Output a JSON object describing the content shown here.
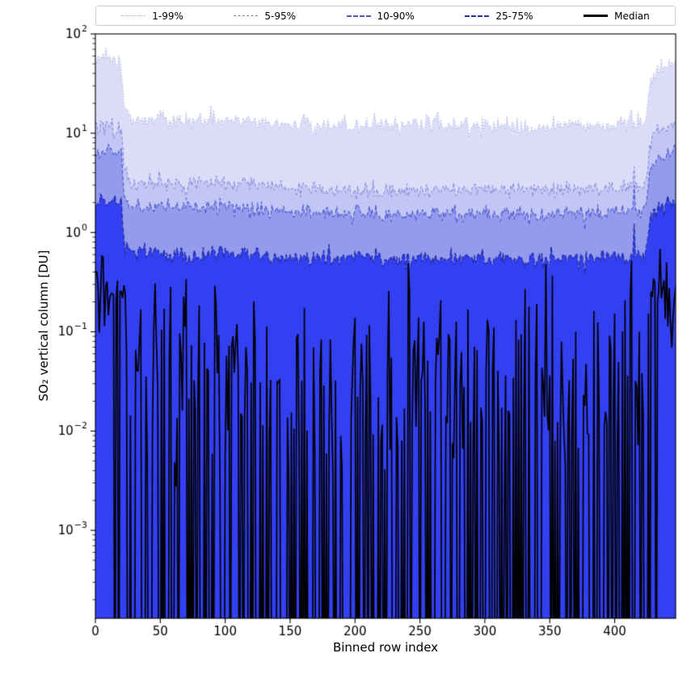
{
  "chart_data": {
    "type": "area",
    "title": "",
    "x_label": "Binned row index",
    "y_label": "SO₂ vertical column [DU]",
    "x_range": [
      0,
      447
    ],
    "x_ticks": [
      0,
      50,
      100,
      150,
      200,
      250,
      300,
      350,
      400
    ],
    "y_scale": "log",
    "y_range": [
      0.00013,
      100
    ],
    "y_tick_base": "10",
    "y_tick_exponents": [
      2,
      1,
      0,
      -1,
      -2,
      -3
    ],
    "n_bins": 448,
    "noise_seed": 1337,
    "grid": false,
    "legend_position": "top",
    "legend": [
      "1-99%",
      "5-95%",
      "10-90%",
      "25-75%",
      "Median"
    ],
    "colors": {
      "p99_fill": "#dbddf8",
      "p95_fill": "#c2c6f4",
      "p90_fill": "#939bec",
      "p75_fill": "#3340f2",
      "p99_edge": "#a8abde",
      "p95_edge": "#7d84d9",
      "p90_edge": "#4c56cd",
      "p75_edge": "#232ea9",
      "median": "#000000",
      "axis": "#000000",
      "background": "#ffffff"
    },
    "series": [
      {
        "id": "p99",
        "label": "1-99%",
        "kind": "band",
        "percentile": 99,
        "sigma": 0.045,
        "spike_weight": 0.25,
        "cx": [
          0,
          6,
          12,
          18,
          20,
          22,
          26,
          60,
          100,
          150,
          200,
          250,
          300,
          340,
          370,
          400,
          412,
          424,
          426,
          430,
          436,
          447
        ],
        "cy": [
          50,
          58,
          56,
          53,
          48,
          22,
          14.5,
          13.2,
          13.8,
          12.2,
          12.0,
          12.3,
          12.0,
          11.2,
          12.6,
          12.0,
          12.8,
          13.5,
          26,
          38,
          44,
          54
        ]
      },
      {
        "id": "p95",
        "label": "5-95%",
        "kind": "band",
        "percentile": 95,
        "sigma": 0.04,
        "spike_weight": 0.5,
        "cx": [
          0,
          8,
          16,
          20,
          22,
          26,
          60,
          100,
          150,
          200,
          250,
          300,
          350,
          400,
          415,
          424,
          427,
          434,
          447
        ],
        "cy": [
          11,
          12,
          11.5,
          10.8,
          4.5,
          3.2,
          3.0,
          3.15,
          2.8,
          2.6,
          2.65,
          2.7,
          2.7,
          2.8,
          2.9,
          3.0,
          7.5,
          10.5,
          12.5
        ]
      },
      {
        "id": "p90",
        "label": "10-90%",
        "kind": "band",
        "percentile": 90,
        "sigma": 0.04,
        "spike_weight": 0.8,
        "cx": [
          0,
          8,
          16,
          20,
          22,
          26,
          60,
          100,
          150,
          200,
          250,
          300,
          350,
          400,
          415,
          424,
          427,
          434,
          447
        ],
        "cy": [
          6.0,
          6.6,
          6.3,
          5.9,
          2.4,
          1.85,
          1.75,
          1.82,
          1.62,
          1.55,
          1.5,
          1.55,
          1.52,
          1.6,
          1.65,
          1.7,
          4.0,
          5.5,
          6.5
        ]
      },
      {
        "id": "p75",
        "label": "25-75%",
        "kind": "band",
        "percentile": 75,
        "sigma": 0.045,
        "spike_weight": 1.0,
        "cx": [
          0,
          8,
          16,
          20,
          22,
          26,
          60,
          100,
          150,
          200,
          250,
          300,
          350,
          400,
          415,
          424,
          427,
          434,
          447
        ],
        "cy": [
          1.9,
          2.05,
          2.0,
          1.9,
          0.8,
          0.63,
          0.6,
          0.62,
          0.57,
          0.55,
          0.54,
          0.55,
          0.54,
          0.57,
          0.58,
          0.6,
          1.35,
          1.8,
          2.1
        ]
      },
      {
        "id": "median",
        "label": "Median",
        "kind": "line",
        "sigma_mid": 0.55,
        "sigma_edge": 0.22,
        "dropout_mid": 0.42,
        "dropout_edge": 0.05,
        "edge_lo": 22,
        "edge_hi": 427,
        "cx": [
          0,
          5,
          10,
          15,
          18,
          21,
          24,
          40,
          80,
          120,
          160,
          200,
          240,
          280,
          320,
          360,
          400,
          412,
          424,
          428,
          433,
          440,
          447
        ],
        "cy": [
          0.22,
          0.17,
          0.26,
          0.19,
          0.3,
          0.22,
          0.045,
          0.04,
          0.035,
          0.04,
          0.035,
          0.03,
          0.035,
          0.04,
          0.035,
          0.03,
          0.035,
          0.05,
          0.07,
          0.28,
          0.22,
          0.17,
          0.24
        ]
      }
    ]
  }
}
